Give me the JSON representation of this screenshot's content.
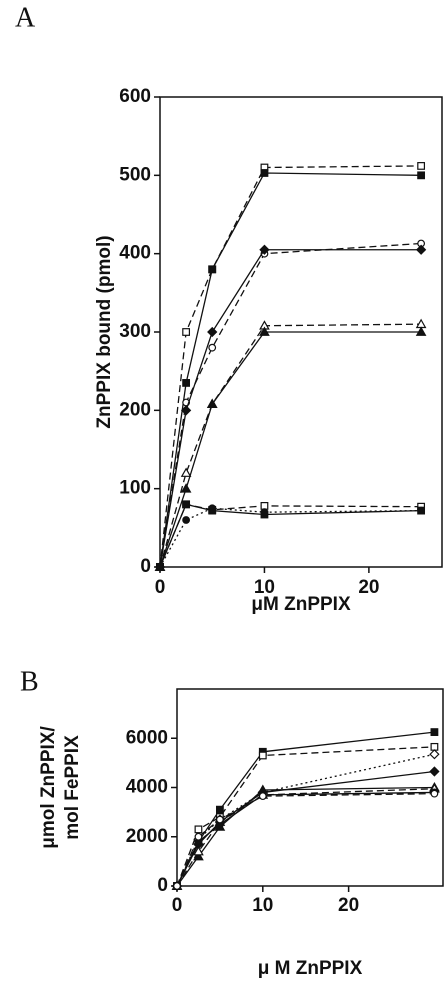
{
  "chart_data": [
    {
      "type": "line",
      "panel": "A",
      "xlabel": "μM ZnPPIX",
      "ylabel": [
        "ZnPPIX bound (pmol)"
      ],
      "x": [
        0,
        2.5,
        5,
        10,
        25
      ],
      "xlim": [
        0,
        27
      ],
      "xticks": [
        0,
        10,
        20
      ],
      "ylim": [
        0,
        600
      ],
      "yticks": [
        0,
        100,
        200,
        300,
        400,
        500,
        600
      ],
      "series": [
        {
          "color": "#111111",
          "marker": "square",
          "filled": false,
          "dash": "dashed",
          "values": [
            0,
            300,
            380,
            510,
            512
          ]
        },
        {
          "color": "#111111",
          "marker": "square",
          "filled": true,
          "dash": "solid",
          "values": [
            0,
            235,
            380,
            503,
            500
          ]
        },
        {
          "color": "#111111",
          "marker": "circle",
          "filled": false,
          "dash": "dashed",
          "values": [
            0,
            210,
            280,
            400,
            413
          ]
        },
        {
          "color": "#111111",
          "marker": "diamond",
          "filled": true,
          "dash": "solid",
          "values": [
            0,
            200,
            300,
            405,
            405
          ]
        },
        {
          "color": "#111111",
          "marker": "triangle",
          "filled": false,
          "dash": "dashed",
          "values": [
            0,
            120,
            208,
            308,
            310
          ]
        },
        {
          "color": "#111111",
          "marker": "triangle",
          "filled": true,
          "dash": "solid",
          "values": [
            0,
            100,
            208,
            300,
            300
          ]
        },
        {
          "color": "#111111",
          "marker": "square",
          "filled": false,
          "dash": "dashed",
          "values": [
            0,
            80,
            73,
            78,
            77
          ]
        },
        {
          "color": "#111111",
          "marker": "square",
          "filled": true,
          "dash": "solid",
          "values": [
            0,
            80,
            72,
            67,
            72
          ]
        },
        {
          "color": "#111111",
          "marker": "circle",
          "filled": true,
          "dash": "dotted",
          "values": [
            0,
            60,
            75,
            70,
            72
          ]
        }
      ]
    },
    {
      "type": "line",
      "panel": "B",
      "xlabel": "μ M ZnPPIX",
      "ylabel": [
        "μmol ZnPPIX/",
        "mol FePPIX"
      ],
      "x": [
        0,
        2.5,
        5,
        10,
        30
      ],
      "xlim": [
        0,
        31
      ],
      "xticks": [
        0,
        10,
        20
      ],
      "ylim": [
        0,
        8000
      ],
      "yticks": [
        0,
        2000,
        4000,
        6000
      ],
      "series": [
        {
          "color": "#111111",
          "marker": "square",
          "filled": true,
          "dash": "solid",
          "values": [
            0,
            1800,
            3100,
            5450,
            6250
          ]
        },
        {
          "color": "#111111",
          "marker": "square",
          "filled": false,
          "dash": "dashed",
          "values": [
            0,
            2300,
            2800,
            5300,
            5650
          ]
        },
        {
          "color": "#111111",
          "marker": "diamond",
          "filled": false,
          "dash": "dotted",
          "values": [
            0,
            1900,
            2700,
            3800,
            5350
          ]
        },
        {
          "color": "#111111",
          "marker": "diamond",
          "filled": true,
          "dash": "solid",
          "values": [
            0,
            1700,
            2600,
            3800,
            4650
          ]
        },
        {
          "color": "#111111",
          "marker": "triangle",
          "filled": true,
          "dash": "solid",
          "values": [
            0,
            1200,
            2400,
            3900,
            4000
          ]
        },
        {
          "color": "#111111",
          "marker": "triangle",
          "filled": false,
          "dash": "dashed",
          "values": [
            0,
            1400,
            2600,
            3700,
            3950
          ]
        },
        {
          "color": "#111111",
          "marker": "circle",
          "filled": true,
          "dash": "solid",
          "values": [
            0,
            1800,
            2500,
            3700,
            3800
          ]
        },
        {
          "color": "#111111",
          "marker": "circle",
          "filled": false,
          "dash": "dashed",
          "values": [
            0,
            2000,
            2700,
            3650,
            3750
          ]
        }
      ]
    }
  ]
}
